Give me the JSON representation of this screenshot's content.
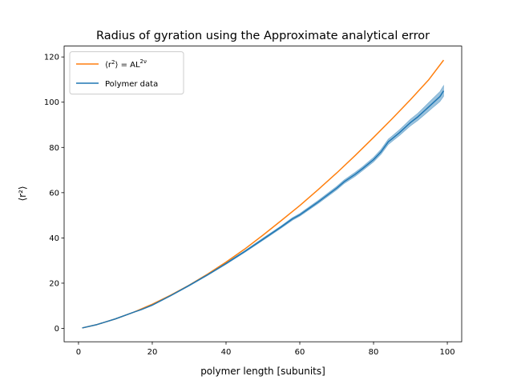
{
  "chart_data": {
    "type": "line",
    "title": "Radius of gyration using the Approximate analytical error",
    "xlabel": "polymer length [subunits]",
    "ylabel": "⟨r²⟩",
    "xlim": [
      -3.9,
      103.9
    ],
    "ylim": [
      -5.9,
      124.8
    ],
    "xticks": [
      0,
      20,
      40,
      60,
      80,
      100
    ],
    "yticks": [
      0,
      20,
      40,
      60,
      80,
      100,
      120
    ],
    "grid": false,
    "legend_position": "top-left",
    "series": [
      {
        "name": "⟨r²⟩ = AL^{2ν}",
        "legend_label": {
          "main": "⟨r",
          "sup1": "2",
          "mid": "⟩ = AL",
          "sup2": "2ν"
        },
        "color": "#ff7f0e",
        "kind": "fit",
        "x": [
          1,
          5,
          10,
          15,
          20,
          25,
          30,
          35,
          40,
          45,
          50,
          55,
          60,
          65,
          70,
          75,
          80,
          85,
          90,
          95,
          99
        ],
        "y": [
          0.2,
          1.7,
          4.2,
          7.2,
          10.7,
          14.7,
          19.1,
          24.0,
          29.3,
          35.0,
          41.2,
          47.7,
          54.3,
          61.4,
          68.7,
          76.4,
          84.4,
          92.6,
          101.1,
          110.0,
          118.6
        ]
      },
      {
        "name": "Polymer data",
        "color": "#1f77b4",
        "kind": "data",
        "x": [
          1,
          5,
          10,
          15,
          17,
          20,
          25,
          30,
          35,
          40,
          45,
          50,
          55,
          58,
          60,
          65,
          70,
          72,
          75,
          77,
          80,
          82,
          84,
          85,
          87,
          89,
          90,
          92,
          94,
          95,
          96,
          97,
          98,
          99
        ],
        "y": [
          0.2,
          1.7,
          4.2,
          7.2,
          8.3,
          10.3,
          14.5,
          19.0,
          23.7,
          28.7,
          33.9,
          39.4,
          44.9,
          48.4,
          50.2,
          55.9,
          62.0,
          64.8,
          68.1,
          70.6,
          74.6,
          78.0,
          82.5,
          83.8,
          86.5,
          89.5,
          91.0,
          93.5,
          96.5,
          98.0,
          99.5,
          101.0,
          102.5,
          105.0
        ],
        "error": [
          0,
          0,
          0.1,
          0.1,
          0.1,
          0.2,
          0.2,
          0.3,
          0.3,
          0.4,
          0.4,
          0.5,
          0.5,
          0.6,
          0.6,
          0.7,
          0.8,
          0.8,
          0.9,
          0.9,
          1.0,
          1.1,
          1.2,
          1.2,
          1.3,
          1.4,
          1.5,
          1.6,
          1.8,
          1.9,
          2.0,
          2.1,
          2.2,
          2.4
        ]
      }
    ]
  }
}
